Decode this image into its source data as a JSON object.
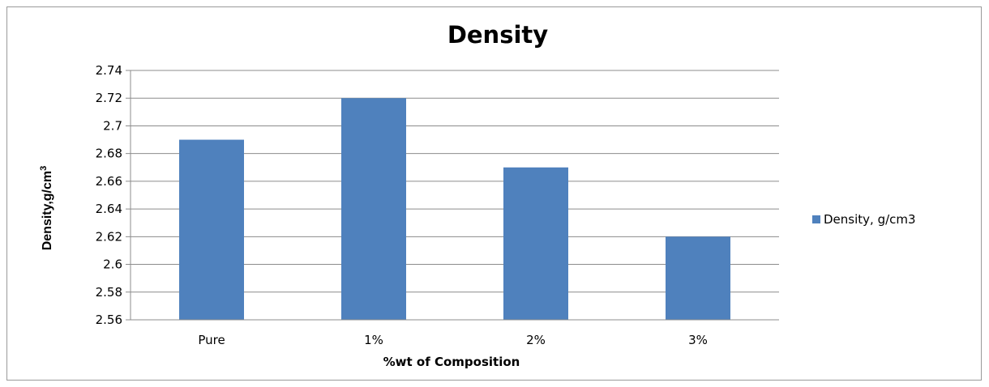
{
  "chart_data": {
    "type": "bar",
    "title": "Density",
    "xlabel": "%wt of Composition",
    "ylabel": "Density,g/cm",
    "ylabel_superscript": "3",
    "categories": [
      "Pure",
      "1%",
      "2%",
      "3%"
    ],
    "series": [
      {
        "name": "Density, g/cm3",
        "values": [
          2.69,
          2.72,
          2.67,
          2.62
        ],
        "color": "#4f81bd"
      }
    ],
    "ylim": [
      2.56,
      2.74
    ],
    "yticks": [
      "2.56",
      "2.58",
      "2.6",
      "2.62",
      "2.64",
      "2.66",
      "2.68",
      "2.7",
      "2.72",
      "2.74"
    ],
    "ytick_values": [
      2.56,
      2.58,
      2.6,
      2.62,
      2.64,
      2.66,
      2.68,
      2.7,
      2.72,
      2.74
    ],
    "grid": true,
    "legend_position": "right"
  }
}
